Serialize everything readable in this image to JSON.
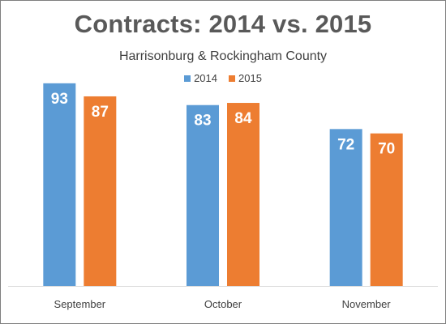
{
  "chart_data": {
    "type": "bar",
    "title": "Contracts: 2014 vs. 2015",
    "subtitle": "Harrisonburg & Rockingham County",
    "categories": [
      "September",
      "October",
      "November"
    ],
    "series": [
      {
        "name": "2014",
        "color": "#5b9bd5",
        "values": [
          93,
          83,
          72
        ]
      },
      {
        "name": "2015",
        "color": "#ed7d31",
        "values": [
          87,
          84,
          70
        ]
      }
    ],
    "ylim": [
      0,
      100
    ],
    "grid": false,
    "legend_position": "top-center",
    "data_labels": true
  }
}
